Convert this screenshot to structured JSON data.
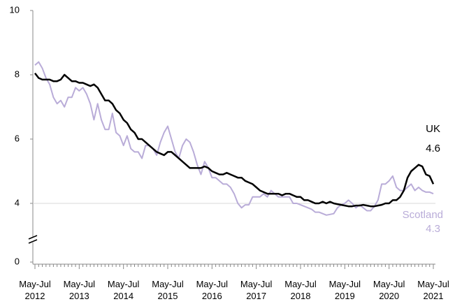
{
  "chart_data": {
    "type": "line",
    "categories": [
      "May-Jul 2012",
      null,
      null,
      null,
      null,
      null,
      null,
      null,
      null,
      null,
      null,
      null,
      "May-Jul 2013",
      null,
      null,
      null,
      null,
      null,
      null,
      null,
      null,
      null,
      null,
      null,
      "May-Jul 2014",
      null,
      null,
      null,
      null,
      null,
      null,
      null,
      null,
      null,
      null,
      null,
      "May-Jul 2015",
      null,
      null,
      null,
      null,
      null,
      null,
      null,
      null,
      null,
      null,
      null,
      "May-Jul 2016",
      null,
      null,
      null,
      null,
      null,
      null,
      null,
      null,
      null,
      null,
      null,
      "May-Jul 2017",
      null,
      null,
      null,
      null,
      null,
      null,
      null,
      null,
      null,
      null,
      null,
      "May-Jul 2018",
      null,
      null,
      null,
      null,
      null,
      null,
      null,
      null,
      null,
      null,
      null,
      "May-Jul 2019",
      null,
      null,
      null,
      null,
      null,
      null,
      null,
      null,
      null,
      null,
      null,
      "May-Jul 2020",
      null,
      null,
      null,
      null,
      null,
      null,
      null,
      null,
      null,
      null,
      null,
      "May-Jul 2021"
    ],
    "series": [
      {
        "name": "UK",
        "color": "#000000",
        "width": 2.5,
        "values": [
          8.05,
          7.9,
          7.85,
          7.85,
          7.85,
          7.8,
          7.8,
          7.85,
          8.0,
          7.9,
          7.8,
          7.8,
          7.75,
          7.75,
          7.7,
          7.65,
          7.7,
          7.6,
          7.4,
          7.2,
          7.2,
          7.1,
          6.9,
          6.8,
          6.6,
          6.5,
          6.3,
          6.2,
          6.0,
          6.0,
          5.9,
          5.8,
          5.7,
          5.6,
          5.55,
          5.5,
          5.6,
          5.6,
          5.5,
          5.4,
          5.3,
          5.2,
          5.1,
          5.1,
          5.1,
          5.1,
          5.15,
          5.1,
          5.0,
          4.95,
          4.9,
          4.9,
          4.95,
          4.9,
          4.85,
          4.8,
          4.8,
          4.7,
          4.65,
          4.6,
          4.5,
          4.4,
          4.35,
          4.3,
          4.3,
          4.3,
          4.3,
          4.25,
          4.3,
          4.3,
          4.25,
          4.2,
          4.2,
          4.1,
          4.1,
          4.05,
          4.0,
          4.0,
          4.05,
          4.0,
          4.05,
          4.0,
          3.95,
          3.9,
          3.85,
          3.8,
          3.8,
          3.85,
          3.85,
          3.9,
          3.85,
          3.8,
          3.8,
          3.85,
          3.9,
          4.0,
          4.0,
          4.1,
          4.1,
          4.2,
          4.4,
          4.8,
          5.0,
          5.1,
          5.2,
          5.15,
          4.9,
          4.85,
          4.6
        ]
      },
      {
        "name": "Scotland",
        "color": "#b9acd8",
        "width": 2,
        "values": [
          8.3,
          8.4,
          8.2,
          7.9,
          7.7,
          7.3,
          7.1,
          7.2,
          7.0,
          7.3,
          7.3,
          7.6,
          7.5,
          7.6,
          7.4,
          7.1,
          6.6,
          7.1,
          6.6,
          6.3,
          6.3,
          6.8,
          6.2,
          6.1,
          5.8,
          6.1,
          5.7,
          5.6,
          5.6,
          5.4,
          5.8,
          5.8,
          5.7,
          5.5,
          5.9,
          6.2,
          6.4,
          6.0,
          5.6,
          5.4,
          5.8,
          6.0,
          5.9,
          5.6,
          5.2,
          4.9,
          5.3,
          5.1,
          4.8,
          4.8,
          4.7,
          4.6,
          4.6,
          4.5,
          4.3,
          4.0,
          3.7,
          3.9,
          3.9,
          4.2,
          4.2,
          4.2,
          4.3,
          4.2,
          4.4,
          4.3,
          4.2,
          4.2,
          4.2,
          4.2,
          4.0,
          4.0,
          3.9,
          3.8,
          3.7,
          3.6,
          3.4,
          3.4,
          3.3,
          3.2,
          3.25,
          3.3,
          3.7,
          3.9,
          4.0,
          4.1,
          4.0,
          3.7,
          3.9,
          3.7,
          3.5,
          3.5,
          3.8,
          4.1,
          4.6,
          4.6,
          4.7,
          4.85,
          4.5,
          4.4,
          4.4,
          4.5,
          4.6,
          4.4,
          4.5,
          4.4,
          4.35,
          4.35,
          4.3
        ]
      }
    ],
    "annotations": [
      {
        "text": "UK",
        "color": "#000000"
      },
      {
        "text": "4.6",
        "color": "#000000"
      },
      {
        "text": "Scotland",
        "color": "#b9acd8"
      },
      {
        "text": "4.3",
        "color": "#b9acd8"
      }
    ],
    "ylim": [
      0,
      10
    ],
    "yticks": [
      0,
      4,
      6,
      8,
      10
    ],
    "axis_break": [
      0,
      4
    ],
    "grid": false
  }
}
